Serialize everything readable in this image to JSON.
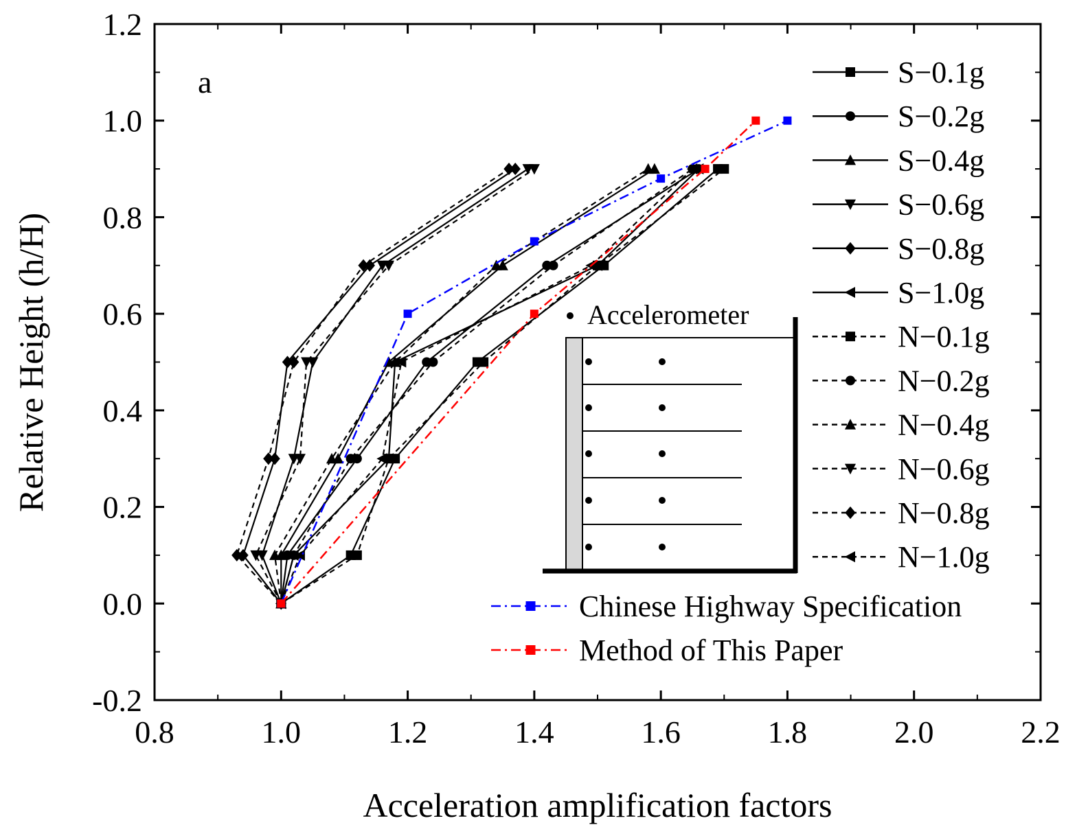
{
  "chart_data": {
    "type": "line",
    "panel_label": "a",
    "xlabel": "Acceleration amplification factors",
    "ylabel": "Relative Height (h/H)",
    "xlim": [
      0.8,
      2.2
    ],
    "ylim": [
      -0.2,
      1.2
    ],
    "xticks": [
      "0.8",
      "1.0",
      "1.2",
      "1.4",
      "1.6",
      "1.8",
      "2.0",
      "2.2"
    ],
    "yticks": [
      "-0.2",
      "0.0",
      "0.2",
      "0.4",
      "0.6",
      "0.8",
      "1.0",
      "1.2"
    ],
    "series": [
      {
        "name": "S−0.1g",
        "style": "solid",
        "marker": "square",
        "color": "#000000",
        "x": [
          1.0,
          1.11,
          1.18,
          1.31,
          1.51,
          1.69
        ],
        "y": [
          0.0,
          0.1,
          0.3,
          0.5,
          0.7,
          0.9
        ]
      },
      {
        "name": "S−0.2g",
        "style": "solid",
        "marker": "circle",
        "color": "#000000",
        "x": [
          1.0,
          1.01,
          1.12,
          1.23,
          1.42,
          1.66
        ],
        "y": [
          0.0,
          0.1,
          0.3,
          0.5,
          0.7,
          0.9
        ]
      },
      {
        "name": "S−0.4g",
        "style": "solid",
        "marker": "triangle-up",
        "color": "#000000",
        "x": [
          1.0,
          1.0,
          1.09,
          1.17,
          1.35,
          1.59
        ],
        "y": [
          0.0,
          0.1,
          0.3,
          0.5,
          0.7,
          0.9
        ]
      },
      {
        "name": "S−0.6g",
        "style": "solid",
        "marker": "triangle-down",
        "color": "#000000",
        "x": [
          1.0,
          0.97,
          1.02,
          1.05,
          1.16,
          1.39
        ],
        "y": [
          0.0,
          0.1,
          0.3,
          0.5,
          0.7,
          0.9
        ]
      },
      {
        "name": "S−0.8g",
        "style": "solid",
        "marker": "diamond",
        "color": "#000000",
        "x": [
          1.0,
          0.94,
          0.99,
          1.01,
          1.14,
          1.37
        ],
        "y": [
          0.0,
          0.1,
          0.3,
          0.5,
          0.7,
          0.9
        ]
      },
      {
        "name": "S−1.0g",
        "style": "solid",
        "marker": "triangle-left",
        "color": "#000000",
        "x": [
          1.0,
          1.02,
          1.17,
          1.18,
          1.5,
          1.66
        ],
        "y": [
          0.0,
          0.1,
          0.3,
          0.5,
          0.7,
          0.9
        ]
      },
      {
        "name": "N−0.1g",
        "style": "dashed",
        "marker": "square",
        "color": "#000000",
        "x": [
          1.0,
          1.12,
          1.17,
          1.32,
          1.5,
          1.7
        ],
        "y": [
          0.0,
          0.1,
          0.3,
          0.5,
          0.7,
          0.9
        ]
      },
      {
        "name": "N−0.2g",
        "style": "dashed",
        "marker": "circle",
        "color": "#000000",
        "x": [
          1.0,
          1.02,
          1.11,
          1.24,
          1.43,
          1.65
        ],
        "y": [
          0.0,
          0.1,
          0.3,
          0.5,
          0.7,
          0.9
        ]
      },
      {
        "name": "N−0.4g",
        "style": "dashed",
        "marker": "triangle-up",
        "color": "#000000",
        "x": [
          1.0,
          0.99,
          1.08,
          1.18,
          1.34,
          1.58
        ],
        "y": [
          0.0,
          0.1,
          0.3,
          0.5,
          0.7,
          0.9
        ]
      },
      {
        "name": "N−0.6g",
        "style": "dashed",
        "marker": "triangle-down",
        "color": "#000000",
        "x": [
          1.0,
          0.96,
          1.03,
          1.04,
          1.17,
          1.4
        ],
        "y": [
          0.0,
          0.1,
          0.3,
          0.5,
          0.7,
          0.9
        ]
      },
      {
        "name": "N−0.8g",
        "style": "dashed",
        "marker": "diamond",
        "color": "#000000",
        "x": [
          1.0,
          0.93,
          0.98,
          1.02,
          1.13,
          1.36
        ],
        "y": [
          0.0,
          0.1,
          0.3,
          0.5,
          0.7,
          0.9
        ]
      },
      {
        "name": "N−1.0g",
        "style": "dashed",
        "marker": "triangle-left",
        "color": "#000000",
        "x": [
          1.0,
          1.03,
          1.16,
          1.19,
          1.49,
          1.65
        ],
        "y": [
          0.0,
          0.1,
          0.3,
          0.5,
          0.7,
          0.9
        ]
      },
      {
        "name": "Chinese Highway Specification",
        "style": "dashdot",
        "marker": "square",
        "color": "#0000ff",
        "x": [
          1.0,
          1.2,
          1.4,
          1.6,
          1.8
        ],
        "y": [
          0.0,
          0.6,
          0.75,
          0.88,
          1.0
        ]
      },
      {
        "name": "Method of This Paper",
        "style": "dashdot",
        "marker": "square",
        "color": "#ff0000",
        "x": [
          1.0,
          1.4,
          1.67,
          1.75
        ],
        "y": [
          0.0,
          0.6,
          0.9,
          1.0
        ]
      }
    ],
    "inset": {
      "legend_label": "Accelerometer"
    }
  }
}
